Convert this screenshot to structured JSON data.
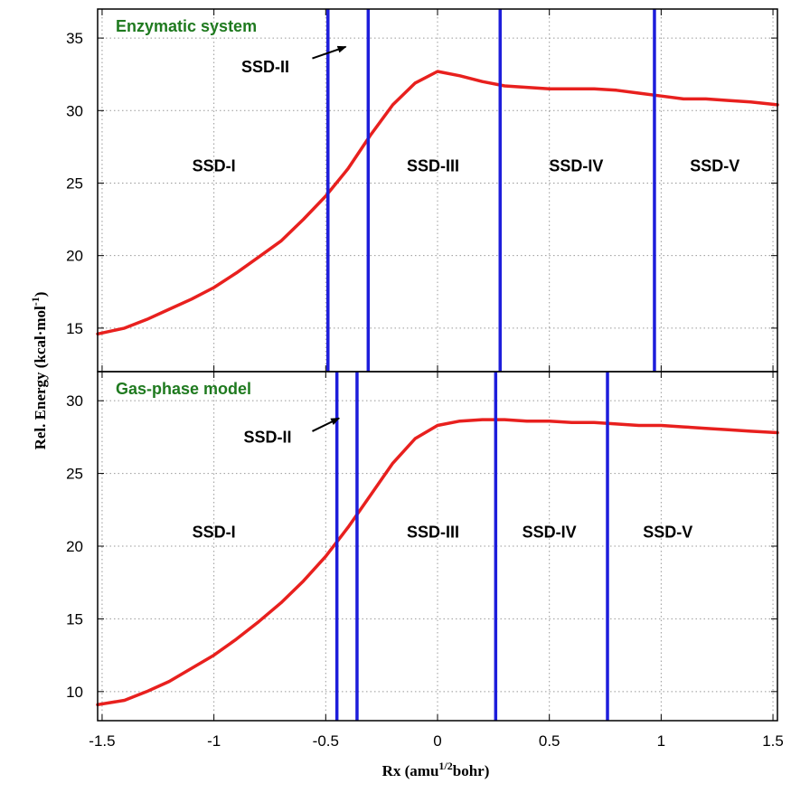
{
  "colors": {
    "curve": "#e8201e",
    "boundary": "#1d1ddb",
    "panel_title": "#1f7a1f",
    "grid": "#999999",
    "frame": "#000000"
  },
  "axis_labels": {
    "xlabel_main": "Rx (amu",
    "xlabel_sup": "1/2",
    "xlabel_end": "bohr)",
    "ylabel_main": "Rel. Energy  (kcal·mol",
    "ylabel_sup": "-1",
    "ylabel_end": ")"
  },
  "chart_data": [
    {
      "type": "line",
      "title": "Enzymatic system",
      "xlim": [
        -1.52,
        1.52
      ],
      "ylim": [
        12,
        37
      ],
      "xticks": [
        -1.5,
        -1,
        -0.5,
        0,
        0.5,
        1,
        1.5
      ],
      "xtick_labels": [
        "-1.5",
        "-1",
        "-0.5",
        "0",
        "0.5",
        "1",
        "1.5"
      ],
      "yticks": [
        15,
        20,
        25,
        30,
        35
      ],
      "ytick_labels": [
        "15",
        "20",
        "25",
        "30",
        "35"
      ],
      "grid": true,
      "series": [
        {
          "x": [
            -1.52,
            -1.4,
            -1.3,
            -1.2,
            -1.1,
            -1.0,
            -0.9,
            -0.8,
            -0.7,
            -0.6,
            -0.5,
            -0.4,
            -0.3,
            -0.2,
            -0.1,
            0.0,
            0.1,
            0.2,
            0.3,
            0.4,
            0.5,
            0.6,
            0.7,
            0.8,
            0.9,
            1.0,
            1.1,
            1.2,
            1.3,
            1.4,
            1.52
          ],
          "y": [
            14.6,
            15.0,
            15.6,
            16.3,
            17.0,
            17.8,
            18.8,
            19.9,
            21.0,
            22.5,
            24.1,
            26.0,
            28.3,
            30.4,
            31.9,
            32.7,
            32.4,
            32.0,
            31.7,
            31.6,
            31.5,
            31.5,
            31.5,
            31.4,
            31.2,
            31.0,
            30.8,
            30.8,
            30.7,
            30.6,
            30.4
          ]
        }
      ],
      "boundaries": [
        -0.49,
        -0.31,
        0.28,
        0.97
      ],
      "regions": [
        {
          "label": "SSD-I",
          "x": -1.0,
          "y": 25.8
        },
        {
          "label": "SSD-III",
          "x": -0.02,
          "y": 25.8
        },
        {
          "label": "SSD-IV",
          "x": 0.62,
          "y": 25.8
        },
        {
          "label": "SSD-V",
          "x": 1.24,
          "y": 25.8
        }
      ],
      "annotation": {
        "label": "SSD-II",
        "text_x": -0.77,
        "text_y": 33.0,
        "arrow_from": [
          -0.56,
          33.6
        ],
        "arrow_to": [
          -0.41,
          34.4
        ]
      }
    },
    {
      "type": "line",
      "title": "Gas-phase model",
      "xlim": [
        -1.52,
        1.52
      ],
      "ylim": [
        8,
        32
      ],
      "xticks": [
        -1.5,
        -1,
        -0.5,
        0,
        0.5,
        1,
        1.5
      ],
      "xtick_labels": [
        "-1.5",
        "-1",
        "-0.5",
        "0",
        "0.5",
        "1",
        "1.5"
      ],
      "yticks": [
        10,
        15,
        20,
        25,
        30
      ],
      "ytick_labels": [
        "10",
        "15",
        "20",
        "25",
        "30"
      ],
      "grid": true,
      "series": [
        {
          "x": [
            -1.52,
            -1.4,
            -1.3,
            -1.2,
            -1.1,
            -1.0,
            -0.9,
            -0.8,
            -0.7,
            -0.6,
            -0.5,
            -0.4,
            -0.3,
            -0.2,
            -0.1,
            0.0,
            0.1,
            0.2,
            0.3,
            0.4,
            0.5,
            0.6,
            0.7,
            0.8,
            0.9,
            1.0,
            1.1,
            1.2,
            1.3,
            1.4,
            1.52
          ],
          "y": [
            9.1,
            9.4,
            10.0,
            10.7,
            11.6,
            12.5,
            13.6,
            14.8,
            16.1,
            17.6,
            19.3,
            21.3,
            23.5,
            25.7,
            27.4,
            28.3,
            28.6,
            28.7,
            28.7,
            28.6,
            28.6,
            28.5,
            28.5,
            28.4,
            28.3,
            28.3,
            28.2,
            28.1,
            28.0,
            27.9,
            27.8
          ]
        }
      ],
      "boundaries": [
        -0.45,
        -0.36,
        0.26,
        0.76
      ],
      "regions": [
        {
          "label": "SSD-I",
          "x": -1.0,
          "y": 20.6
        },
        {
          "label": "SSD-III",
          "x": -0.02,
          "y": 20.6
        },
        {
          "label": "SSD-IV",
          "x": 0.5,
          "y": 20.6
        },
        {
          "label": "SSD-V",
          "x": 1.03,
          "y": 20.6
        }
      ],
      "annotation": {
        "label": "SSD-II",
        "text_x": -0.76,
        "text_y": 27.5,
        "arrow_from": [
          -0.56,
          27.9
        ],
        "arrow_to": [
          -0.44,
          28.8
        ]
      }
    }
  ]
}
